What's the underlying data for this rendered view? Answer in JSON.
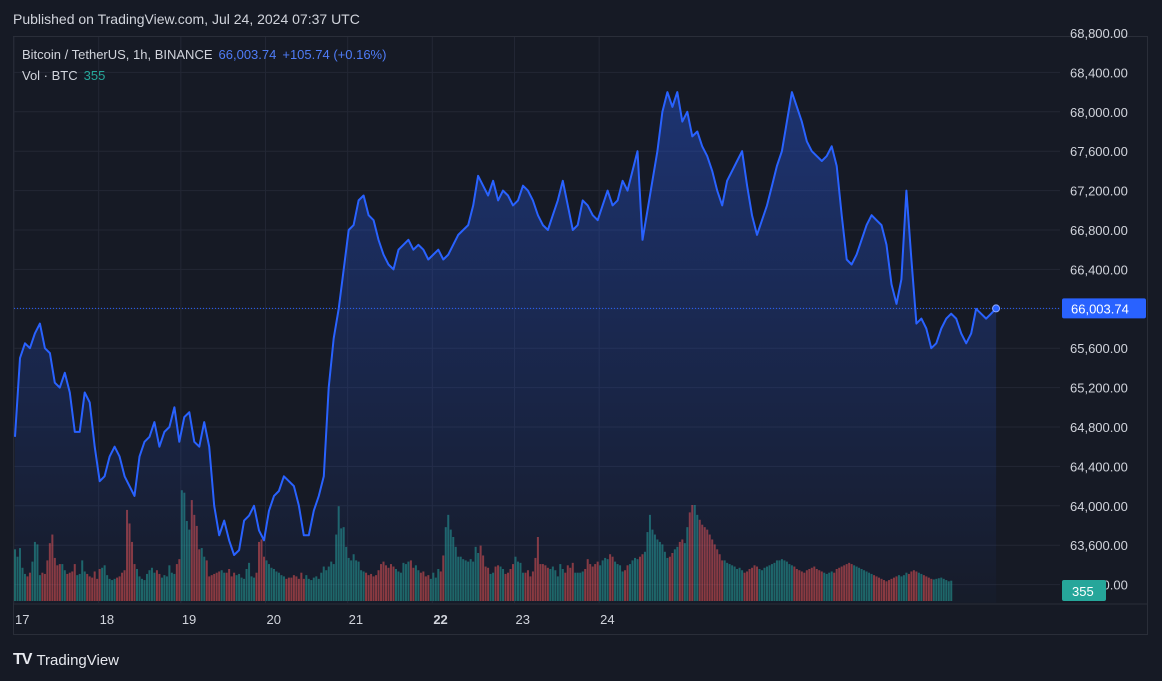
{
  "header": {
    "published": "Published on TradingView.com, Jul 24, 2024 07:37 UTC"
  },
  "legend": {
    "symbol": "Bitcoin / TetherUS, 1h, BINANCE",
    "price": "66,003.74",
    "change": "+105.74 (+0.16%)",
    "vol_label": "Vol · BTC",
    "vol_value": "355"
  },
  "footer": {
    "logo": "TV",
    "brand": "TradingView"
  },
  "chart_data": {
    "type": "area",
    "title": "Bitcoin / TetherUS, 1h, BINANCE",
    "x_ticks": [
      {
        "label": "17",
        "idx": 0
      },
      {
        "label": "18",
        "idx": 34
      },
      {
        "label": "19",
        "idx": 67
      },
      {
        "label": "20",
        "idx": 101
      },
      {
        "label": "21",
        "idx": 134
      },
      {
        "label": "22",
        "idx": 168
      },
      {
        "label": "23",
        "idx": 201
      },
      {
        "label": "24",
        "idx": 235
      }
    ],
    "y_ticks": [
      "68,800.00",
      "68,400.00",
      "68,000.00",
      "67,600.00",
      "67,200.00",
      "66,800.00",
      "66,400.00",
      "66,000.00",
      "65,600.00",
      "65,200.00",
      "64,800.00",
      "64,400.00",
      "64,000.00",
      "63,600.00",
      "63,200.00"
    ],
    "ylim": [
      63000,
      68850
    ],
    "last_price": 66003.74,
    "last_price_label": "66,003.74",
    "volume_label": "355",
    "colors": {
      "line": "#2962ff",
      "up": "#26a69a",
      "down": "#ef5350",
      "grid": "#232734",
      "axis_text": "#d1d4dc"
    },
    "keypoints": [
      [
        0,
        64700
      ],
      [
        2,
        65500
      ],
      [
        4,
        65650
      ],
      [
        6,
        65600
      ],
      [
        8,
        65750
      ],
      [
        10,
        65850
      ],
      [
        12,
        65600
      ],
      [
        14,
        65550
      ],
      [
        16,
        65250
      ],
      [
        18,
        65200
      ],
      [
        20,
        65350
      ],
      [
        22,
        65150
      ],
      [
        24,
        64750
      ],
      [
        26,
        64750
      ],
      [
        28,
        65150
      ],
      [
        30,
        65050
      ],
      [
        32,
        64600
      ],
      [
        34,
        64250
      ],
      [
        36,
        64300
      ],
      [
        38,
        64500
      ],
      [
        40,
        64600
      ],
      [
        42,
        64500
      ],
      [
        44,
        64300
      ],
      [
        46,
        64200
      ],
      [
        48,
        64100
      ],
      [
        50,
        64500
      ],
      [
        52,
        64650
      ],
      [
        54,
        64700
      ],
      [
        56,
        64850
      ],
      [
        58,
        64600
      ],
      [
        60,
        64750
      ],
      [
        62,
        64800
      ],
      [
        64,
        65000
      ],
      [
        66,
        64650
      ],
      [
        68,
        64900
      ],
      [
        70,
        64950
      ],
      [
        72,
        64650
      ],
      [
        74,
        64600
      ],
      [
        76,
        64850
      ],
      [
        78,
        64600
      ],
      [
        80,
        64000
      ],
      [
        82,
        63700
      ],
      [
        84,
        63850
      ],
      [
        86,
        63650
      ],
      [
        88,
        63500
      ],
      [
        90,
        63550
      ],
      [
        92,
        63850
      ],
      [
        94,
        63900
      ],
      [
        96,
        64000
      ],
      [
        98,
        63750
      ],
      [
        100,
        63650
      ],
      [
        102,
        63950
      ],
      [
        104,
        64100
      ],
      [
        106,
        64150
      ],
      [
        108,
        64300
      ],
      [
        110,
        64250
      ],
      [
        112,
        64200
      ],
      [
        114,
        64000
      ],
      [
        116,
        63700
      ],
      [
        118,
        63700
      ],
      [
        120,
        63950
      ],
      [
        122,
        64100
      ],
      [
        124,
        64300
      ],
      [
        126,
        65200
      ],
      [
        128,
        65700
      ],
      [
        130,
        66000
      ],
      [
        132,
        66400
      ],
      [
        134,
        66800
      ],
      [
        136,
        66850
      ],
      [
        138,
        67100
      ],
      [
        140,
        67150
      ],
      [
        142,
        66950
      ],
      [
        144,
        66900
      ],
      [
        146,
        66700
      ],
      [
        148,
        66550
      ],
      [
        150,
        66450
      ],
      [
        152,
        66400
      ],
      [
        154,
        66600
      ],
      [
        156,
        66650
      ],
      [
        158,
        66700
      ],
      [
        160,
        66600
      ],
      [
        162,
        66650
      ],
      [
        164,
        66600
      ],
      [
        166,
        66500
      ],
      [
        168,
        66550
      ],
      [
        170,
        66600
      ],
      [
        172,
        66500
      ],
      [
        174,
        66550
      ],
      [
        176,
        66650
      ],
      [
        178,
        66750
      ],
      [
        180,
        66800
      ],
      [
        182,
        66850
      ],
      [
        184,
        67050
      ],
      [
        186,
        67350
      ],
      [
        188,
        67250
      ],
      [
        190,
        67150
      ],
      [
        192,
        67300
      ],
      [
        194,
        67100
      ],
      [
        196,
        67200
      ],
      [
        198,
        67150
      ],
      [
        200,
        67050
      ],
      [
        202,
        67100
      ],
      [
        204,
        67250
      ],
      [
        206,
        67200
      ],
      [
        208,
        67100
      ],
      [
        210,
        66950
      ],
      [
        212,
        66850
      ],
      [
        214,
        66800
      ],
      [
        216,
        66950
      ],
      [
        218,
        67100
      ],
      [
        220,
        67300
      ],
      [
        222,
        67050
      ],
      [
        224,
        66800
      ],
      [
        226,
        66850
      ],
      [
        228,
        67100
      ],
      [
        230,
        67050
      ],
      [
        232,
        66950
      ],
      [
        234,
        66900
      ],
      [
        236,
        67050
      ],
      [
        238,
        67200
      ],
      [
        240,
        67050
      ],
      [
        242,
        67100
      ],
      [
        244,
        67300
      ],
      [
        246,
        67200
      ],
      [
        248,
        67400
      ],
      [
        250,
        67600
      ],
      [
        252,
        66700
      ],
      [
        254,
        67000
      ],
      [
        256,
        67300
      ],
      [
        258,
        67600
      ],
      [
        260,
        68000
      ],
      [
        262,
        68200
      ],
      [
        264,
        68050
      ],
      [
        266,
        68200
      ],
      [
        268,
        67900
      ],
      [
        270,
        68000
      ],
      [
        272,
        67750
      ],
      [
        274,
        67800
      ],
      [
        276,
        67650
      ],
      [
        278,
        67550
      ],
      [
        280,
        67400
      ],
      [
        282,
        67200
      ],
      [
        284,
        67050
      ],
      [
        286,
        67300
      ],
      [
        288,
        67400
      ],
      [
        290,
        67500
      ],
      [
        292,
        67600
      ],
      [
        294,
        67250
      ],
      [
        296,
        66950
      ],
      [
        298,
        66750
      ],
      [
        300,
        66900
      ],
      [
        302,
        67050
      ],
      [
        304,
        67250
      ],
      [
        306,
        67450
      ],
      [
        308,
        67600
      ],
      [
        310,
        67900
      ],
      [
        312,
        68200
      ],
      [
        314,
        68050
      ],
      [
        316,
        67900
      ],
      [
        318,
        67700
      ],
      [
        320,
        67600
      ],
      [
        322,
        67550
      ],
      [
        324,
        67500
      ],
      [
        326,
        67550
      ],
      [
        328,
        67650
      ],
      [
        330,
        67450
      ],
      [
        332,
        66950
      ],
      [
        334,
        66500
      ],
      [
        336,
        66450
      ],
      [
        338,
        66550
      ],
      [
        340,
        66700
      ],
      [
        342,
        66850
      ],
      [
        344,
        66950
      ],
      [
        346,
        66900
      ],
      [
        348,
        66850
      ],
      [
        350,
        66650
      ],
      [
        352,
        66250
      ],
      [
        354,
        66050
      ],
      [
        356,
        66300
      ],
      [
        358,
        67200
      ],
      [
        360,
        66500
      ],
      [
        362,
        65850
      ],
      [
        364,
        65900
      ],
      [
        366,
        65800
      ],
      [
        368,
        65600
      ],
      [
        370,
        65650
      ],
      [
        372,
        65800
      ],
      [
        374,
        65900
      ],
      [
        376,
        65950
      ],
      [
        378,
        65900
      ],
      [
        380,
        65750
      ],
      [
        382,
        65650
      ],
      [
        384,
        65750
      ],
      [
        386,
        66000
      ],
      [
        388,
        65950
      ],
      [
        390,
        65900
      ],
      [
        392,
        65950
      ],
      [
        394,
        66003.74
      ]
    ],
    "volume_max_shown": 1300,
    "volumes": [
      420,
      360,
      430,
      270,
      220,
      200,
      230,
      320,
      480,
      460,
      210,
      230,
      220,
      330,
      470,
      540,
      350,
      290,
      300,
      300,
      250,
      220,
      230,
      240,
      300,
      210,
      220,
      330,
      240,
      220,
      200,
      190,
      240,
      180,
      260,
      270,
      290,
      210,
      180,
      170,
      180,
      190,
      200,
      230,
      250,
      740,
      630,
      480,
      300,
      260,
      200,
      180,
      170,
      220,
      250,
      270,
      230,
      250,
      220,
      190,
      210,
      200,
      290,
      230,
      220,
      300,
      340,
      900,
      880,
      650,
      580,
      820,
      700,
      610,
      420,
      430,
      360,
      330,
      200,
      210,
      220,
      230,
      240,
      250,
      230,
      230,
      260,
      200,
      230,
      210,
      220,
      190,
      180,
      260,
      310,
      200,
      190,
      230,
      480,
      500,
      360,
      330,
      300,
      270,
      260,
      240,
      230,
      210,
      200,
      180,
      190,
      190,
      210,
      200,
      180,
      230,
      180,
      210,
      180,
      170,
      190,
      200,
      180,
      230,
      280,
      250,
      280,
      320,
      300,
      540,
      770,
      590,
      600,
      440,
      350,
      330,
      380,
      330,
      320,
      250,
      240,
      230,
      210,
      220,
      200,
      210,
      250,
      300,
      320,
      290,
      270,
      300,
      280,
      260,
      240,
      230,
      310,
      300,
      320,
      330,
      270,
      290,
      250,
      230,
      240,
      200,
      210,
      180,
      230,
      190,
      260,
      240,
      370,
      600,
      700,
      580,
      520,
      440,
      360,
      360,
      340,
      330,
      320,
      340,
      320,
      440,
      390,
      450,
      370,
      280,
      270,
      220,
      230,
      280,
      290,
      280,
      260,
      220,
      230,
      260,
      300,
      360,
      320,
      310,
      230,
      230,
      250,
      200,
      240,
      350,
      520,
      300,
      300,
      290,
      270,
      260,
      280,
      250,
      200,
      300,
      260,
      230,
      290,
      270,
      310,
      230,
      230,
      230,
      240,
      260,
      340,
      300,
      280,
      300,
      320,
      290,
      330,
      350,
      340,
      380,
      360,
      320,
      300,
      290,
      240,
      250,
      290,
      300,
      330,
      350,
      340,
      360,
      380,
      400,
      560,
      700,
      580,
      540,
      500,
      480,
      460,
      400,
      350,
      360,
      390,
      420,
      440,
      480,
      500,
      470,
      600,
      720,
      780,
      780,
      700,
      660,
      620,
      600,
      580,
      540,
      500,
      460,
      420,
      380,
      330,
      330,
      310,
      300,
      290,
      280,
      260,
      270,
      250,
      230,
      240,
      260,
      270,
      290,
      280,
      260,
      250,
      270,
      280,
      290,
      300,
      310,
      330,
      330,
      340,
      330,
      320,
      300,
      290,
      280,
      260,
      250,
      240,
      230,
      250,
      260,
      270,
      280,
      260,
      250,
      240,
      230,
      220,
      230,
      240,
      230,
      260,
      270,
      280,
      290,
      300,
      310,
      300,
      290,
      280,
      270,
      260,
      250,
      240,
      230,
      220,
      210,
      200,
      190,
      180,
      170,
      160,
      170,
      180,
      190,
      200,
      210,
      200,
      210,
      230,
      220,
      240,
      250,
      240,
      230,
      220,
      210,
      200,
      190,
      180,
      175,
      180,
      185,
      190,
      180,
      170,
      160,
      165
    ]
  }
}
